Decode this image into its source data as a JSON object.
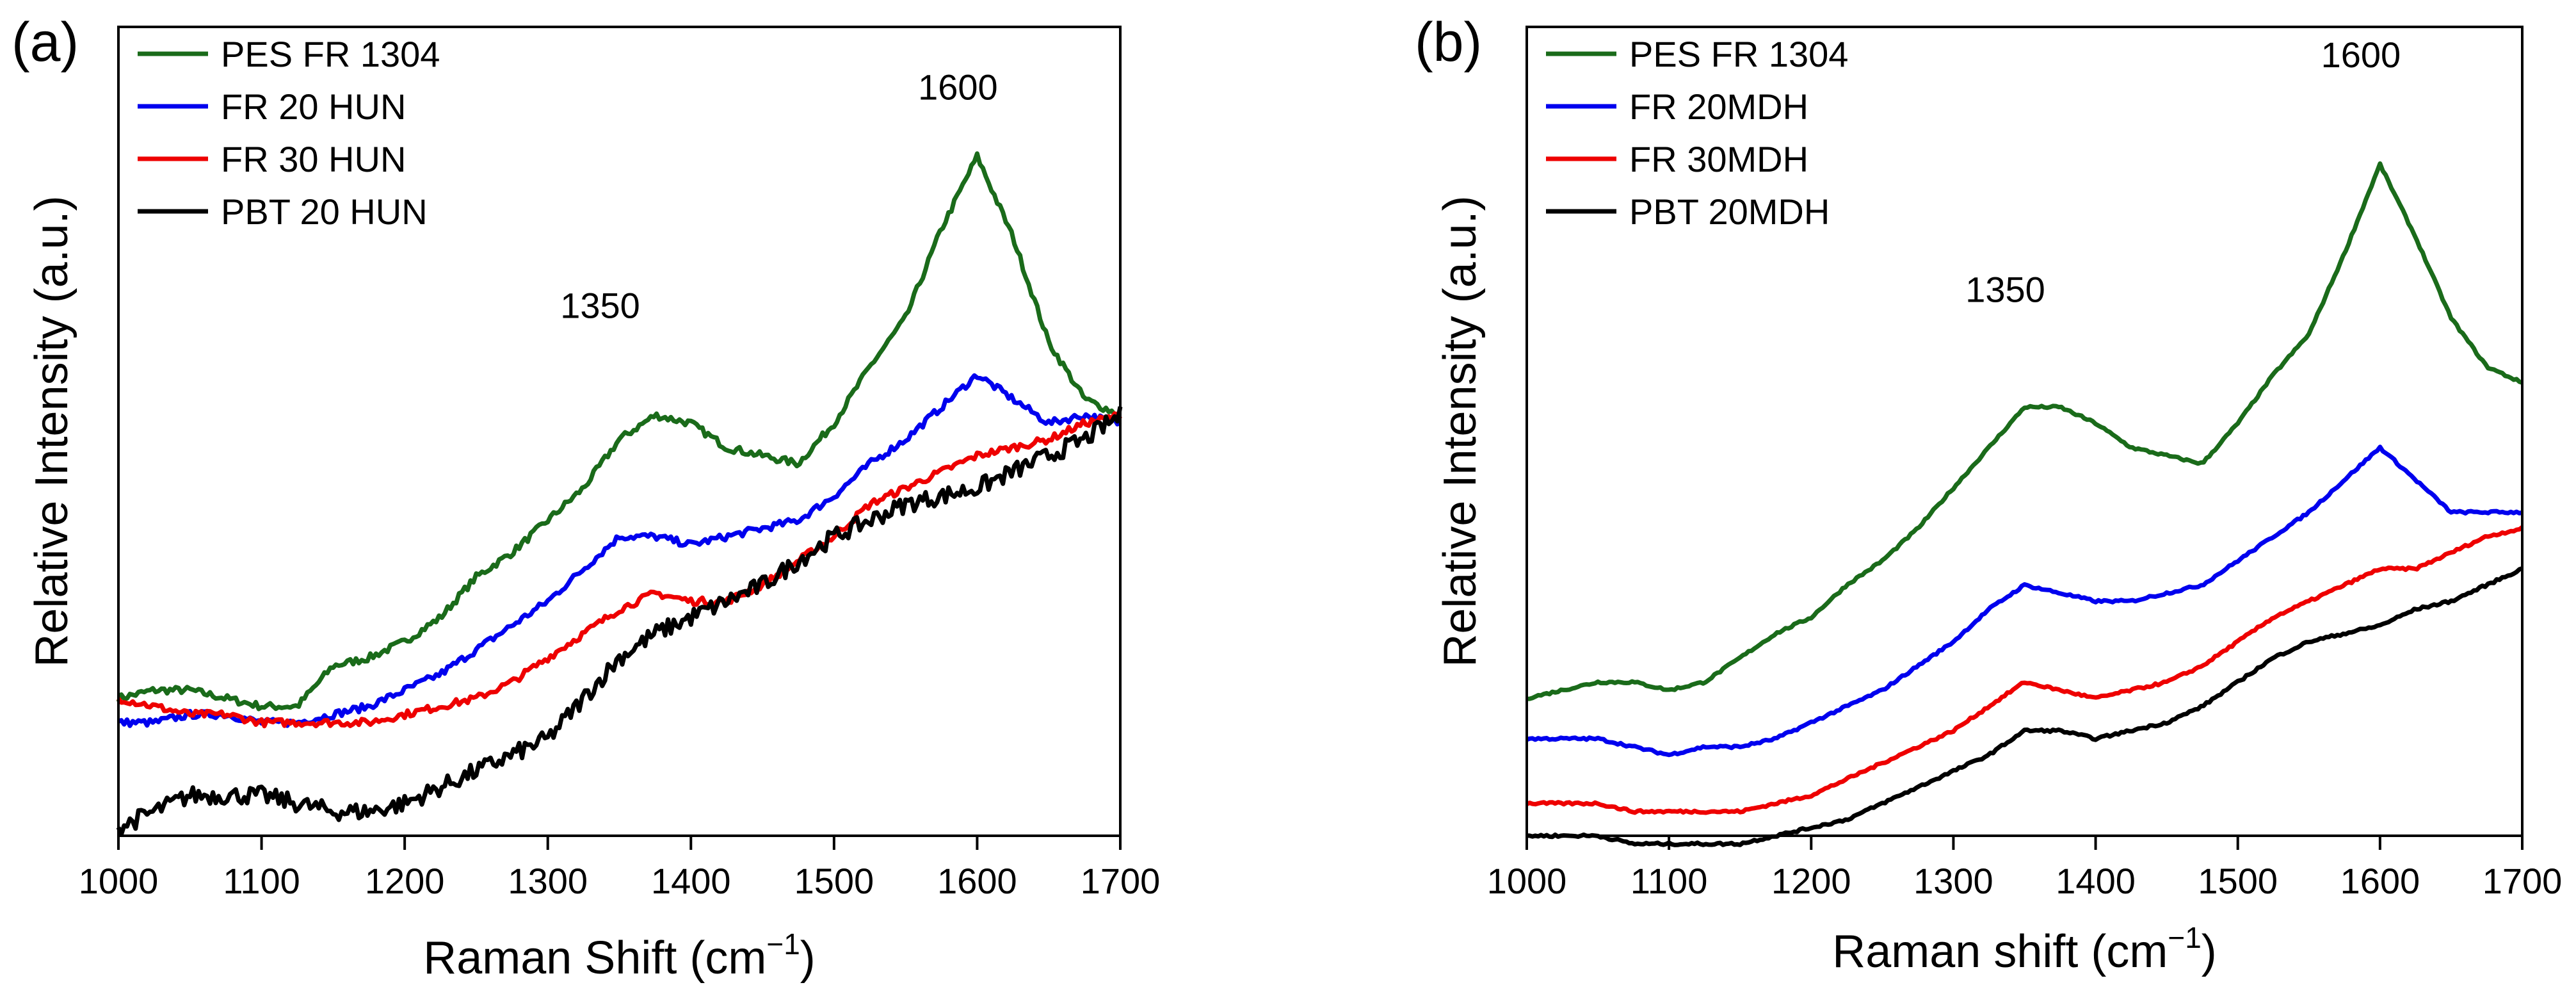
{
  "chart_data": [
    {
      "type": "line",
      "panel_label": "(a)",
      "xlabel": "Raman Shift (cm",
      "xlabel_sup": "−1",
      "xlabel_close": ")",
      "ylabel": "Relative Intensity (a.u.)",
      "xlim": [
        1000,
        1700
      ],
      "ylim": [
        0,
        100
      ],
      "y_ticks_visible": false,
      "x_ticks": [
        1000,
        1100,
        1200,
        1300,
        1400,
        1500,
        1600,
        1700
      ],
      "grid": false,
      "legend_position": "top-left",
      "annotations": [
        {
          "text": "1350",
          "x": 1350,
          "y": 64
        },
        {
          "text": "1600",
          "x": 1600,
          "y": 91
        }
      ],
      "series": [
        {
          "name": "PES FR 1304",
          "color": "#1a6b1a",
          "x": [
            1000,
            1025,
            1050,
            1075,
            1100,
            1125,
            1150,
            1175,
            1200,
            1225,
            1250,
            1275,
            1300,
            1325,
            1350,
            1375,
            1400,
            1425,
            1450,
            1475,
            1500,
            1525,
            1550,
            1575,
            1600,
            1625,
            1650,
            1675,
            1700
          ],
          "y": [
            17,
            18,
            18,
            17,
            16,
            16,
            21,
            22,
            24,
            27,
            32,
            35,
            39,
            43,
            49,
            52,
            51,
            48,
            47,
            46,
            51,
            58,
            64,
            75,
            84,
            74,
            61,
            54,
            52
          ]
        },
        {
          "name": "FR 20 HUN",
          "color": "#0000ee",
          "x": [
            1000,
            1025,
            1050,
            1075,
            1100,
            1125,
            1150,
            1175,
            1200,
            1225,
            1250,
            1275,
            1300,
            1325,
            1350,
            1375,
            1400,
            1425,
            1450,
            1475,
            1500,
            1525,
            1550,
            1575,
            1600,
            1625,
            1650,
            1675,
            1700
          ],
          "y": [
            14,
            14,
            15,
            15,
            14,
            14,
            15,
            16,
            18,
            20,
            23,
            26,
            29,
            33,
            37,
            37,
            36,
            37,
            38,
            39,
            42,
            46,
            49,
            53,
            57,
            54,
            51,
            52,
            51
          ]
        },
        {
          "name": "FR 30 HUN",
          "color": "#ee0000",
          "x": [
            1000,
            1025,
            1050,
            1075,
            1100,
            1125,
            1150,
            1175,
            1200,
            1225,
            1250,
            1275,
            1300,
            1325,
            1350,
            1375,
            1400,
            1425,
            1450,
            1475,
            1500,
            1525,
            1550,
            1575,
            1600,
            1625,
            1650,
            1675,
            1700
          ],
          "y": [
            17,
            16,
            15,
            15,
            14,
            14,
            14,
            14,
            15,
            16,
            17,
            19,
            22,
            25,
            28,
            30,
            29,
            29,
            31,
            34,
            37,
            41,
            43,
            45,
            47,
            48,
            49,
            51,
            52
          ]
        },
        {
          "name": "PBT 20 HUN",
          "color": "#000000",
          "x": [
            1000,
            1025,
            1050,
            1075,
            1100,
            1125,
            1150,
            1175,
            1200,
            1225,
            1250,
            1275,
            1300,
            1325,
            1350,
            1375,
            1400,
            1425,
            1450,
            1475,
            1500,
            1525,
            1550,
            1575,
            1600,
            1625,
            1650,
            1675,
            1700
          ],
          "y": [
            1,
            3,
            5,
            5,
            5,
            4,
            3,
            3,
            4,
            6,
            8,
            10,
            12,
            17,
            22,
            25,
            27,
            29,
            31,
            34,
            37,
            39,
            41,
            42,
            43,
            45,
            47,
            49,
            52
          ]
        }
      ]
    },
    {
      "type": "line",
      "panel_label": "(b)",
      "xlabel": "Raman shift (cm",
      "xlabel_sup": "−1",
      "xlabel_close": ")",
      "ylabel": "Relative Intensity (a.u.)",
      "xlim": [
        1000,
        1700
      ],
      "ylim": [
        0,
        100
      ],
      "y_ticks_visible": false,
      "x_ticks": [
        1000,
        1100,
        1200,
        1300,
        1400,
        1500,
        1600,
        1700
      ],
      "grid": false,
      "legend_position": "top-left",
      "annotations": [
        {
          "text": "1350",
          "x": 1350,
          "y": 66
        },
        {
          "text": "1600",
          "x": 1600,
          "y": 95
        }
      ],
      "series": [
        {
          "name": "PES FR 1304",
          "color": "#1a6b1a",
          "x": [
            1000,
            1025,
            1050,
            1075,
            1100,
            1125,
            1150,
            1175,
            1200,
            1225,
            1250,
            1275,
            1300,
            1325,
            1350,
            1375,
            1400,
            1425,
            1450,
            1475,
            1500,
            1525,
            1550,
            1575,
            1600,
            1625,
            1650,
            1675,
            1700
          ],
          "y": [
            17,
            18,
            19,
            19,
            18,
            19,
            22,
            25,
            27,
            31,
            34,
            38,
            43,
            48,
            53,
            53,
            51,
            48,
            47,
            46,
            51,
            57,
            62,
            72,
            83,
            74,
            64,
            58,
            56
          ]
        },
        {
          "name": "FR 20MDH",
          "color": "#0000ee",
          "x": [
            1000,
            1025,
            1050,
            1075,
            1100,
            1125,
            1150,
            1175,
            1200,
            1225,
            1250,
            1275,
            1300,
            1325,
            1350,
            1375,
            1400,
            1425,
            1450,
            1475,
            1500,
            1525,
            1550,
            1575,
            1600,
            1625,
            1650,
            1675,
            1700
          ],
          "y": [
            12,
            12,
            12,
            11,
            10,
            11,
            11,
            12,
            14,
            16,
            18,
            21,
            24,
            28,
            31,
            30,
            29,
            29,
            30,
            31,
            34,
            37,
            40,
            44,
            48,
            44,
            40,
            40,
            40
          ]
        },
        {
          "name": "FR 30MDH",
          "color": "#ee0000",
          "x": [
            1000,
            1025,
            1050,
            1075,
            1100,
            1125,
            1150,
            1175,
            1200,
            1225,
            1250,
            1275,
            1300,
            1325,
            1350,
            1375,
            1400,
            1425,
            1450,
            1475,
            1500,
            1525,
            1550,
            1575,
            1600,
            1625,
            1650,
            1675,
            1700
          ],
          "y": [
            4,
            4,
            4,
            3,
            3,
            3,
            3,
            4,
            5,
            7,
            9,
            11,
            13,
            16,
            19,
            18,
            17,
            18,
            19,
            21,
            24,
            27,
            29,
            31,
            33,
            33,
            35,
            37,
            38
          ]
        },
        {
          "name": "PBT 20MDH",
          "color": "#000000",
          "x": [
            1000,
            1025,
            1050,
            1075,
            1100,
            1125,
            1150,
            1175,
            1200,
            1225,
            1250,
            1275,
            1300,
            1325,
            1350,
            1375,
            1400,
            1425,
            1450,
            1475,
            1500,
            1525,
            1550,
            1575,
            1600,
            1625,
            1650,
            1675,
            1700
          ],
          "y": [
            0,
            0,
            0,
            -1,
            -1,
            -1,
            -1,
            0,
            1,
            2,
            4,
            6,
            8,
            10,
            13,
            13,
            12,
            13,
            14,
            16,
            19,
            22,
            24,
            25,
            26,
            28,
            29,
            31,
            33
          ]
        }
      ]
    }
  ]
}
